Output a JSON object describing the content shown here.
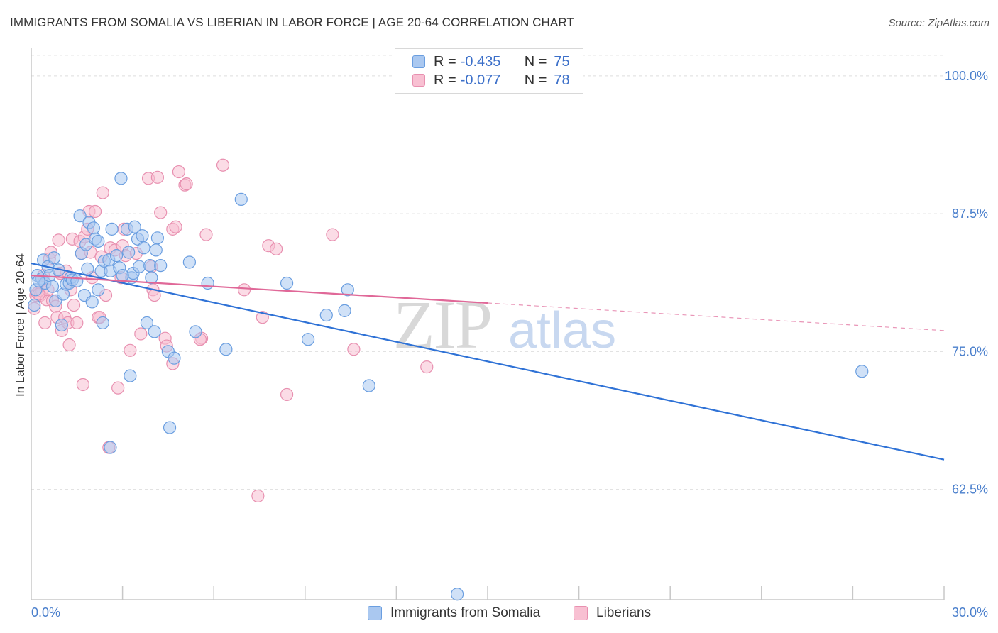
{
  "header": {
    "title": "IMMIGRANTS FROM SOMALIA VS LIBERIAN IN LABOR FORCE | AGE 20-64 CORRELATION CHART",
    "source": "Source: ZipAtlas.com"
  },
  "legend": {
    "rows": [
      {
        "r_label": "R =",
        "r_value": "-0.435",
        "n_label": "N =",
        "n_value": "75",
        "fill": "#aac8f0",
        "stroke": "#6a9ee0"
      },
      {
        "r_label": "R =",
        "r_value": "-0.077",
        "n_label": "N =",
        "n_value": "78",
        "fill": "#f8c0d2",
        "stroke": "#e890b0"
      }
    ]
  },
  "bottom_legend": [
    {
      "label": "Immigrants from Somalia",
      "fill": "#aac8f0",
      "stroke": "#6a9ee0"
    },
    {
      "label": "Liberians",
      "fill": "#f8c0d2",
      "stroke": "#e890b0"
    }
  ],
  "watermark": {
    "zip": "ZIP",
    "atlas": "atlas"
  },
  "chart_data": {
    "type": "scatter",
    "title": "IMMIGRANTS FROM SOMALIA VS LIBERIAN IN LABOR FORCE | AGE 20-64 CORRELATION CHART",
    "xlabel": "",
    "ylabel": "In Labor Force | Age 20-64",
    "xlim": [
      0,
      30
    ],
    "ylim": [
      52.5,
      102.5
    ],
    "x_tick_labels": [
      {
        "value": 0,
        "label": "0.0%"
      },
      {
        "value": 30,
        "label": "30.0%"
      }
    ],
    "x_minor_ticks": [
      3,
      6,
      9,
      12,
      15,
      18,
      21,
      24,
      27,
      30
    ],
    "y_ticks": [
      {
        "value": 100,
        "label": "100.0%"
      },
      {
        "value": 87.5,
        "label": "87.5%"
      },
      {
        "value": 75,
        "label": "75.0%"
      },
      {
        "value": 62.5,
        "label": "62.5%"
      }
    ],
    "grid": true,
    "colors": {
      "somalia_fill": "#aac8f0",
      "somalia_stroke": "#6a9ee0",
      "somalia_line": "#2f72d6",
      "liberian_fill": "#f8c0d2",
      "liberian_stroke": "#e890b0",
      "liberian_line": "#e06898",
      "tick_label": "#4a7fcc"
    },
    "series": [
      {
        "name": "Immigrants from Somalia",
        "r": -0.435,
        "n": 75,
        "trend": {
          "x": [
            0,
            30
          ],
          "y": [
            83.0,
            65.2
          ],
          "solid_to": 30
        },
        "points": [
          [
            0.1,
            79.2
          ],
          [
            0.15,
            80.6
          ],
          [
            0.2,
            81.9
          ],
          [
            0.35,
            81.6
          ],
          [
            0.4,
            83.3
          ],
          [
            0.45,
            81.2
          ],
          [
            0.55,
            82.7
          ],
          [
            0.6,
            81.9
          ],
          [
            0.7,
            80.9
          ],
          [
            0.75,
            83.5
          ],
          [
            0.8,
            79.6
          ],
          [
            1.05,
            80.2
          ],
          [
            1.15,
            81.1
          ],
          [
            1.25,
            81.2
          ],
          [
            1.3,
            81.7
          ],
          [
            1.35,
            81.5
          ],
          [
            1.6,
            87.3
          ],
          [
            1.65,
            83.9
          ],
          [
            1.75,
            80.1
          ],
          [
            1.8,
            84.7
          ],
          [
            1.85,
            82.5
          ],
          [
            1.9,
            86.7
          ],
          [
            2.0,
            79.5
          ],
          [
            2.05,
            86.2
          ],
          [
            2.1,
            85.2
          ],
          [
            2.2,
            80.6
          ],
          [
            2.3,
            82.3
          ],
          [
            2.35,
            77.6
          ],
          [
            2.4,
            83.2
          ],
          [
            2.55,
            83.3
          ],
          [
            2.6,
            82.3
          ],
          [
            2.65,
            86.1
          ],
          [
            2.8,
            83.7
          ],
          [
            2.9,
            82.6
          ],
          [
            2.95,
            90.7
          ],
          [
            3.15,
            86.1
          ],
          [
            3.2,
            84.0
          ],
          [
            3.25,
            72.8
          ],
          [
            3.3,
            81.7
          ],
          [
            3.35,
            82.1
          ],
          [
            3.4,
            86.3
          ],
          [
            3.5,
            85.2
          ],
          [
            3.55,
            82.7
          ],
          [
            3.65,
            85.5
          ],
          [
            3.7,
            84.4
          ],
          [
            3.8,
            77.6
          ],
          [
            3.9,
            82.8
          ],
          [
            3.95,
            81.7
          ],
          [
            4.05,
            76.8
          ],
          [
            4.1,
            84.2
          ],
          [
            4.15,
            85.3
          ],
          [
            4.25,
            82.8
          ],
          [
            4.5,
            75.0
          ],
          [
            4.55,
            68.1
          ],
          [
            4.7,
            74.4
          ],
          [
            5.2,
            83.1
          ],
          [
            5.4,
            76.8
          ],
          [
            5.8,
            81.2
          ],
          [
            6.4,
            75.2
          ],
          [
            6.9,
            88.8
          ],
          [
            8.4,
            81.2
          ],
          [
            9.1,
            76.1
          ],
          [
            9.7,
            78.3
          ],
          [
            10.3,
            78.7
          ],
          [
            10.4,
            80.6
          ],
          [
            11.1,
            71.9
          ],
          [
            2.6,
            66.3
          ],
          [
            14.0,
            53.0
          ],
          [
            27.3,
            73.2
          ],
          [
            0.25,
            81.4
          ],
          [
            0.9,
            82.4
          ],
          [
            1.5,
            81.4
          ],
          [
            2.2,
            85.0
          ],
          [
            3.0,
            81.9
          ],
          [
            1.0,
            77.4
          ]
        ]
      },
      {
        "name": "Liberians",
        "r": -0.077,
        "n": 78,
        "trend": {
          "x": [
            0,
            30
          ],
          "y": [
            81.9,
            76.9
          ],
          "solid_to": 15
        },
        "points": [
          [
            0.1,
            78.9
          ],
          [
            0.15,
            80.1
          ],
          [
            0.2,
            80.3
          ],
          [
            0.3,
            80.1
          ],
          [
            0.35,
            80.5
          ],
          [
            0.4,
            81.9
          ],
          [
            0.45,
            77.6
          ],
          [
            0.5,
            79.7
          ],
          [
            0.55,
            80.6
          ],
          [
            0.6,
            83.4
          ],
          [
            0.65,
            84.0
          ],
          [
            0.7,
            79.6
          ],
          [
            0.8,
            79.1
          ],
          [
            0.85,
            78.1
          ],
          [
            0.9,
            85.1
          ],
          [
            0.95,
            82.1
          ],
          [
            1.0,
            76.9
          ],
          [
            1.1,
            78.1
          ],
          [
            1.2,
            77.6
          ],
          [
            1.25,
            75.6
          ],
          [
            1.3,
            80.6
          ],
          [
            1.35,
            85.2
          ],
          [
            1.4,
            79.2
          ],
          [
            1.5,
            77.6
          ],
          [
            1.6,
            85.0
          ],
          [
            1.65,
            83.9
          ],
          [
            1.7,
            72.0
          ],
          [
            1.75,
            85.4
          ],
          [
            1.85,
            86.1
          ],
          [
            1.9,
            87.7
          ],
          [
            1.95,
            84.0
          ],
          [
            2.0,
            81.7
          ],
          [
            2.1,
            87.7
          ],
          [
            2.2,
            78.1
          ],
          [
            2.25,
            78.1
          ],
          [
            2.3,
            83.6
          ],
          [
            2.35,
            89.4
          ],
          [
            2.45,
            80.1
          ],
          [
            2.55,
            66.3
          ],
          [
            2.6,
            84.4
          ],
          [
            2.75,
            84.2
          ],
          [
            2.85,
            71.7
          ],
          [
            2.95,
            81.7
          ],
          [
            3.0,
            84.6
          ],
          [
            3.05,
            86.1
          ],
          [
            3.1,
            83.7
          ],
          [
            3.25,
            75.1
          ],
          [
            3.45,
            83.9
          ],
          [
            3.6,
            76.6
          ],
          [
            3.85,
            90.7
          ],
          [
            3.95,
            82.7
          ],
          [
            4.0,
            80.6
          ],
          [
            4.05,
            80.1
          ],
          [
            4.15,
            90.8
          ],
          [
            4.25,
            87.6
          ],
          [
            4.4,
            76.2
          ],
          [
            4.45,
            75.5
          ],
          [
            4.65,
            73.9
          ],
          [
            4.65,
            86.1
          ],
          [
            4.75,
            86.3
          ],
          [
            4.85,
            91.3
          ],
          [
            5.05,
            90.1
          ],
          [
            5.1,
            90.2
          ],
          [
            5.6,
            76.2
          ],
          [
            5.75,
            85.6
          ],
          [
            6.3,
            91.9
          ],
          [
            7.0,
            80.6
          ],
          [
            7.45,
            61.9
          ],
          [
            7.6,
            78.1
          ],
          [
            7.8,
            84.6
          ],
          [
            8.05,
            84.3
          ],
          [
            8.4,
            71.1
          ],
          [
            9.9,
            85.6
          ],
          [
            10.6,
            75.2
          ],
          [
            13.0,
            73.6
          ],
          [
            0.25,
            80.2
          ],
          [
            1.15,
            82.3
          ],
          [
            5.55,
            76.1
          ]
        ]
      }
    ]
  }
}
